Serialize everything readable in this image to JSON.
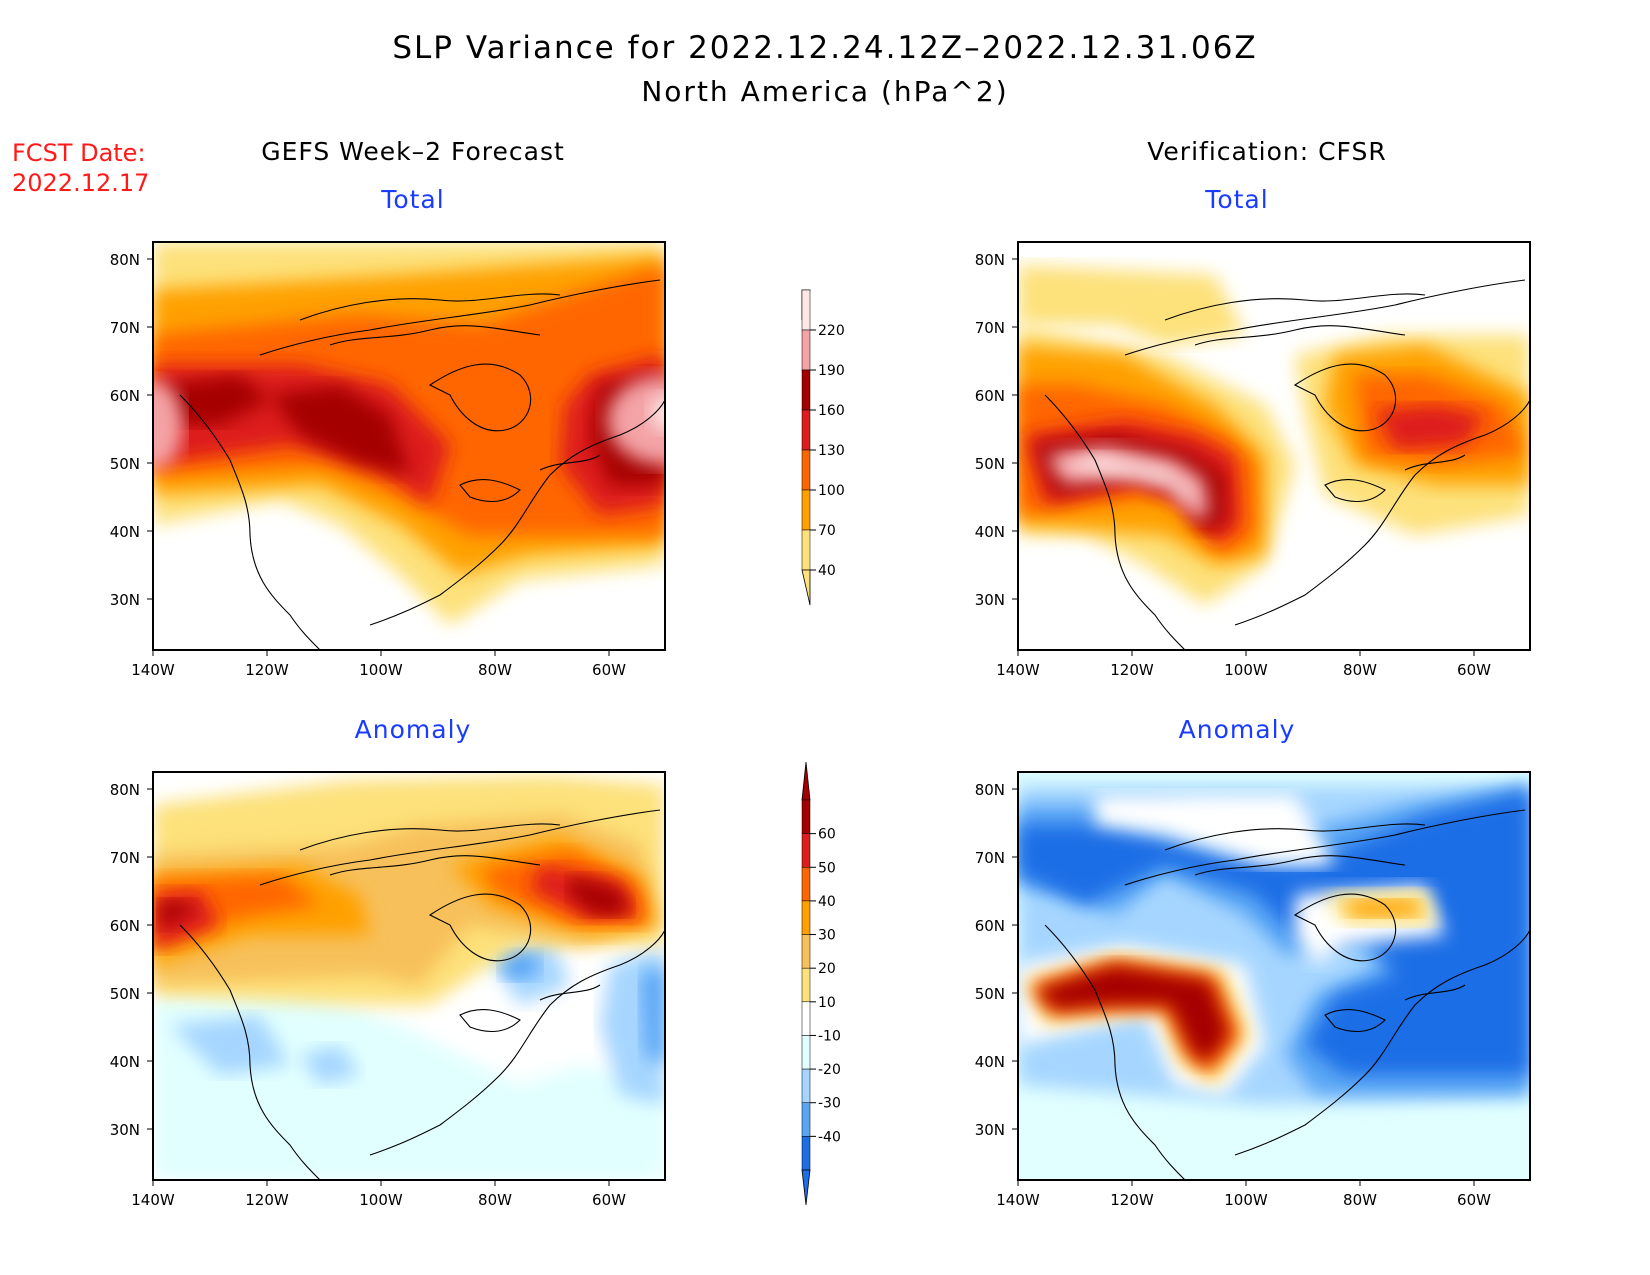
{
  "header": {
    "title": "SLP Variance for 2022.12.24.12Z–2022.12.31.06Z",
    "subtitle": "North America (hPa^2)",
    "fcst_label": "FCST Date:",
    "fcst_date": "2022.12.17"
  },
  "columns": {
    "left": "GEFS Week–2 Forecast",
    "right": "Verification: CFSR"
  },
  "panels": {
    "top_left": "Total",
    "top_right": "Total",
    "bottom_left": "Anomaly",
    "bottom_right": "Anomaly"
  },
  "axes": {
    "lat_labels": [
      "80N",
      "70N",
      "60N",
      "50N",
      "40N",
      "30N"
    ],
    "lon_labels": [
      "140W",
      "120W",
      "100W",
      "80W",
      "60W"
    ]
  },
  "colorbar_total": {
    "labels": [
      "220",
      "190",
      "160",
      "130",
      "100",
      "70",
      "40"
    ],
    "colors": [
      "#fde7e7",
      "#f4a3a6",
      "#a50000",
      "#dd1c1c",
      "#ff6600",
      "#ffa000",
      "#fde17a"
    ]
  },
  "colorbar_anomaly": {
    "labels": [
      "60",
      "50",
      "40",
      "30",
      "20",
      "10",
      "-10",
      "-20",
      "-30",
      "-40"
    ],
    "colors": [
      "#a50000",
      "#dd1c1c",
      "#ff6600",
      "#ffa000",
      "#f7c05a",
      "#fde17a",
      "#ffffff",
      "#e1ffff",
      "#a6d6ff",
      "#5aa6f5",
      "#1e6ee6"
    ]
  },
  "colors": {
    "title_red": "#ff1a1a",
    "panel_blue": "#1a3cff"
  }
}
